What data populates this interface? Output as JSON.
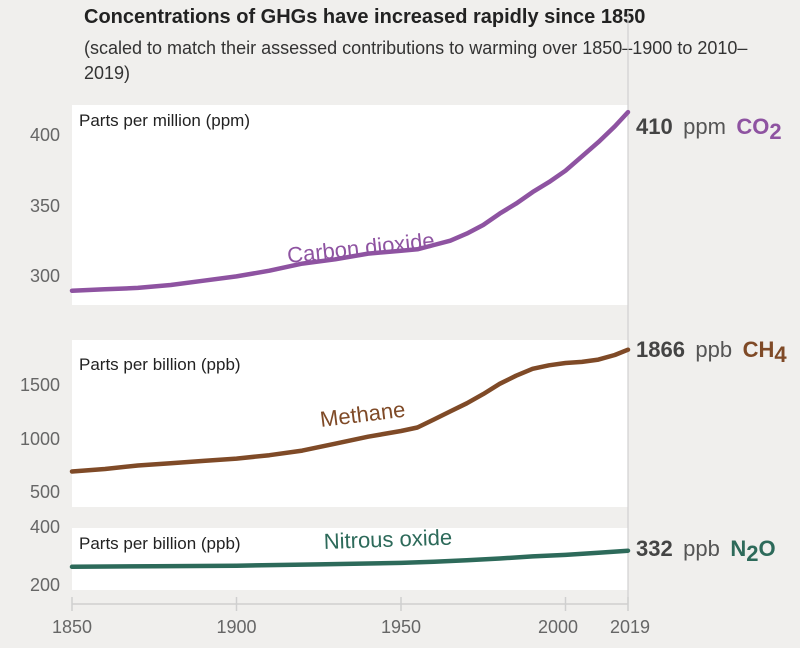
{
  "header": {
    "title": "Concentrations of GHGs have increased rapidly since 1850",
    "subtitle": "(scaled to match their assessed contributions to warming over 1850–1900 to 2010–2019)"
  },
  "chart_data": [
    {
      "type": "line",
      "ylabel": "Parts per million (ppm)",
      "ylim": [
        275,
        415
      ],
      "yticks": [
        "300",
        "350",
        "400"
      ],
      "series": [
        {
          "name": "Carbon dioxide",
          "color": "#8e53a1",
          "x": [
            1850,
            1860,
            1870,
            1880,
            1890,
            1900,
            1910,
            1920,
            1930,
            1940,
            1950,
            1955,
            1960,
            1965,
            1970,
            1975,
            1980,
            1985,
            1990,
            1995,
            2000,
            2005,
            2010,
            2015,
            2019
          ],
          "y": [
            285,
            286,
            287,
            289,
            292,
            295,
            299,
            304,
            307,
            311,
            313,
            314,
            317,
            320,
            325,
            331,
            339,
            346,
            354,
            361,
            369,
            379,
            389,
            400,
            410
          ]
        }
      ],
      "end_label": {
        "value": "410",
        "unit": "ppm",
        "gas": "CO",
        "subscript": "2"
      }
    },
    {
      "type": "line",
      "ylabel": "Parts per billion (ppb)",
      "ylim": [
        500,
        1950
      ],
      "yticks": [
        "500",
        "1000",
        "1500"
      ],
      "series": [
        {
          "name": "Methane",
          "color": "#7f4a27",
          "x": [
            1850,
            1860,
            1870,
            1880,
            1890,
            1900,
            1910,
            1920,
            1930,
            1940,
            1950,
            1955,
            1960,
            1965,
            1970,
            1975,
            1980,
            1985,
            1990,
            1995,
            2000,
            2005,
            2010,
            2015,
            2019
          ],
          "y": [
            808,
            830,
            860,
            880,
            900,
            920,
            950,
            990,
            1050,
            1110,
            1160,
            1190,
            1260,
            1330,
            1400,
            1480,
            1570,
            1640,
            1700,
            1730,
            1750,
            1760,
            1780,
            1820,
            1866
          ]
        }
      ],
      "end_label": {
        "value": "1866",
        "unit": "ppb",
        "gas": "CH",
        "subscript": "4"
      }
    },
    {
      "type": "line",
      "ylabel": "Parts per billion (ppb)",
      "ylim": [
        180,
        420
      ],
      "yticks": [
        "200",
        "400"
      ],
      "series": [
        {
          "name": "Nitrous oxide",
          "color": "#2d6a5a",
          "x": [
            1850,
            1875,
            1900,
            1925,
            1950,
            1960,
            1970,
            1980,
            1990,
            2000,
            2010,
            2019
          ],
          "y": [
            270,
            272,
            274,
            279,
            285,
            289,
            295,
            302,
            310,
            316,
            324,
            332
          ]
        }
      ],
      "end_label": {
        "value": "332",
        "unit": "ppb",
        "gas": "N",
        "subscript": "2",
        "gas_tail": "O"
      }
    }
  ],
  "xaxis": {
    "ticks": [
      "1850",
      "1900",
      "1950",
      "2000",
      "2019"
    ],
    "xlim": [
      1850,
      2019
    ]
  }
}
